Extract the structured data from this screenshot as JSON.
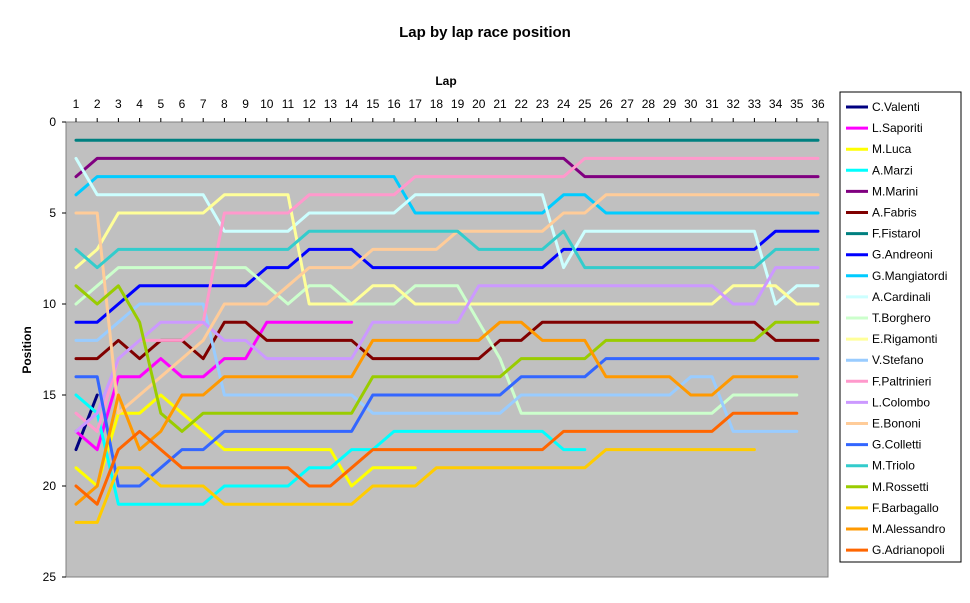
{
  "chart_data": {
    "type": "line",
    "title": "Lap by lap race position",
    "xlabel": "Lap",
    "ylabel": "Position",
    "x_axis_position": "top",
    "y_reversed": true,
    "xlim": [
      1,
      36
    ],
    "ylim": [
      0,
      25
    ],
    "x_ticks": [
      1,
      2,
      3,
      4,
      5,
      6,
      7,
      8,
      9,
      10,
      11,
      12,
      13,
      14,
      15,
      16,
      17,
      18,
      19,
      20,
      21,
      22,
      23,
      24,
      25,
      26,
      27,
      28,
      29,
      30,
      31,
      32,
      33,
      34,
      35,
      36
    ],
    "y_ticks": [
      0,
      5,
      10,
      15,
      20,
      25
    ],
    "grid": false,
    "plot_background": "#c0c0c0",
    "legend_position": "right",
    "series": [
      {
        "name": "C.Valenti",
        "color": "#000080",
        "values": [
          18,
          15
        ]
      },
      {
        "name": "L.Saporiti",
        "color": "#ff00ff",
        "values": [
          17,
          18,
          14,
          14,
          13,
          14,
          14,
          13,
          13,
          11,
          11,
          11,
          11,
          11
        ]
      },
      {
        "name": "M.Luca",
        "color": "#ffff00",
        "values": [
          19,
          20,
          16,
          16,
          15,
          16,
          17,
          18,
          18,
          18,
          18,
          18,
          18,
          20,
          19,
          19,
          19
        ]
      },
      {
        "name": "A.Marzi",
        "color": "#00ffff",
        "values": [
          15,
          16,
          21,
          21,
          21,
          21,
          21,
          20,
          20,
          20,
          20,
          19,
          19,
          18,
          18,
          17,
          17,
          17,
          17,
          17,
          17,
          17,
          17,
          18,
          18
        ]
      },
      {
        "name": "M.Marini",
        "color": "#800080",
        "values": [
          3,
          2,
          2,
          2,
          2,
          2,
          2,
          2,
          2,
          2,
          2,
          2,
          2,
          2,
          2,
          2,
          2,
          2,
          2,
          2,
          2,
          2,
          2,
          2,
          3,
          3,
          3,
          3,
          3,
          3,
          3,
          3,
          3,
          3,
          3,
          3
        ]
      },
      {
        "name": "A.Fabris",
        "color": "#800000",
        "values": [
          13,
          13,
          12,
          13,
          12,
          12,
          13,
          11,
          11,
          12,
          12,
          12,
          12,
          12,
          13,
          13,
          13,
          13,
          13,
          13,
          12,
          12,
          11,
          11,
          11,
          11,
          11,
          11,
          11,
          11,
          11,
          11,
          11,
          12,
          12,
          12
        ]
      },
      {
        "name": "F.Fistarol",
        "color": "#008080",
        "values": [
          1,
          1,
          1,
          1,
          1,
          1,
          1,
          1,
          1,
          1,
          1,
          1,
          1,
          1,
          1,
          1,
          1,
          1,
          1,
          1,
          1,
          1,
          1,
          1,
          1,
          1,
          1,
          1,
          1,
          1,
          1,
          1,
          1,
          1,
          1,
          1
        ]
      },
      {
        "name": "G.Andreoni",
        "color": "#0000ff",
        "values": [
          11,
          11,
          10,
          9,
          9,
          9,
          9,
          9,
          9,
          8,
          8,
          7,
          7,
          7,
          8,
          8,
          8,
          8,
          8,
          8,
          8,
          8,
          8,
          7,
          7,
          7,
          7,
          7,
          7,
          7,
          7,
          7,
          7,
          6,
          6,
          6
        ]
      },
      {
        "name": "G.Mangiatordi",
        "color": "#00ccff",
        "values": [
          4,
          3,
          3,
          3,
          3,
          3,
          3,
          3,
          3,
          3,
          3,
          3,
          3,
          3,
          3,
          3,
          5,
          5,
          5,
          5,
          5,
          5,
          5,
          4,
          4,
          5,
          5,
          5,
          5,
          5,
          5,
          5,
          5,
          5,
          5,
          5
        ]
      },
      {
        "name": "A.Cardinali",
        "color": "#ccffff",
        "values": [
          2,
          4,
          4,
          4,
          4,
          4,
          4,
          6,
          6,
          6,
          6,
          5,
          5,
          5,
          5,
          5,
          4,
          4,
          4,
          4,
          4,
          4,
          4,
          8,
          6,
          6,
          6,
          6,
          6,
          6,
          6,
          6,
          6,
          10,
          9,
          9
        ]
      },
      {
        "name": "T.Borghero",
        "color": "#ccffcc",
        "values": [
          10,
          9,
          8,
          8,
          8,
          8,
          8,
          8,
          8,
          9,
          10,
          9,
          9,
          10,
          10,
          10,
          9,
          9,
          9,
          11,
          13,
          16,
          16,
          16,
          16,
          16,
          16,
          16,
          16,
          16,
          16,
          15,
          15,
          15,
          15
        ]
      },
      {
        "name": "E.Rigamonti",
        "color": "#ffff99",
        "values": [
          8,
          7,
          5,
          5,
          5,
          5,
          5,
          4,
          4,
          4,
          4,
          10,
          10,
          10,
          9,
          9,
          10,
          10,
          10,
          10,
          10,
          10,
          10,
          10,
          10,
          10,
          10,
          10,
          10,
          10,
          10,
          9,
          9,
          9,
          10,
          10
        ]
      },
      {
        "name": "V.Stefano",
        "color": "#99ccff",
        "values": [
          12,
          12,
          11,
          10,
          10,
          10,
          10,
          15,
          15,
          15,
          15,
          15,
          15,
          15,
          16,
          16,
          16,
          16,
          16,
          16,
          16,
          15,
          15,
          15,
          15,
          15,
          15,
          15,
          15,
          14,
          14,
          17,
          17,
          17,
          17
        ]
      },
      {
        "name": "F.Paltrinieri",
        "color": "#ff99cc",
        "values": [
          16,
          17,
          13,
          12,
          12,
          12,
          11,
          5,
          5,
          5,
          5,
          4,
          4,
          4,
          4,
          4,
          3,
          3,
          3,
          3,
          3,
          3,
          3,
          3,
          2,
          2,
          2,
          2,
          2,
          2,
          2,
          2,
          2,
          2,
          2,
          2
        ]
      },
      {
        "name": "L.Colombo",
        "color": "#cc99ff",
        "values": [
          17,
          16,
          13,
          12,
          11,
          11,
          11,
          12,
          12,
          13,
          13,
          13,
          13,
          13,
          11,
          11,
          11,
          11,
          11,
          9,
          9,
          9,
          9,
          9,
          9,
          9,
          9,
          9,
          9,
          9,
          9,
          10,
          10,
          8,
          8,
          8
        ]
      },
      {
        "name": "E.Bononi",
        "color": "#ffcc99",
        "values": [
          5,
          5,
          16,
          15,
          14,
          13,
          12,
          10,
          10,
          10,
          9,
          8,
          8,
          8,
          7,
          7,
          7,
          7,
          6,
          6,
          6,
          6,
          6,
          5,
          5,
          4,
          4,
          4,
          4,
          4,
          4,
          4,
          4,
          4,
          4,
          4
        ]
      },
      {
        "name": "G.Colletti",
        "color": "#3366ff",
        "values": [
          14,
          14,
          20,
          20,
          19,
          18,
          18,
          17,
          17,
          17,
          17,
          17,
          17,
          17,
          15,
          15,
          15,
          15,
          15,
          15,
          15,
          14,
          14,
          14,
          14,
          13,
          13,
          13,
          13,
          13,
          13,
          13,
          13,
          13,
          13,
          13
        ]
      },
      {
        "name": "M.Triolo",
        "color": "#33cccc",
        "values": [
          7,
          8,
          7,
          7,
          7,
          7,
          7,
          7,
          7,
          7,
          7,
          6,
          6,
          6,
          6,
          6,
          6,
          6,
          6,
          7,
          7,
          7,
          7,
          6,
          8,
          8,
          8,
          8,
          8,
          8,
          8,
          8,
          8,
          7,
          7,
          7
        ]
      },
      {
        "name": "M.Rossetti",
        "color": "#99cc00",
        "values": [
          9,
          10,
          9,
          11,
          16,
          17,
          16,
          16,
          16,
          16,
          16,
          16,
          16,
          16,
          14,
          14,
          14,
          14,
          14,
          14,
          14,
          13,
          13,
          13,
          13,
          12,
          12,
          12,
          12,
          12,
          12,
          12,
          12,
          11,
          11,
          11
        ]
      },
      {
        "name": "F.Barbagallo",
        "color": "#ffcc00",
        "values": [
          22,
          22,
          19,
          19,
          20,
          20,
          20,
          21,
          21,
          21,
          21,
          21,
          21,
          21,
          20,
          20,
          20,
          19,
          19,
          19,
          19,
          19,
          19,
          19,
          19,
          18,
          18,
          18,
          18,
          18,
          18,
          18,
          18
        ]
      },
      {
        "name": "M.Alessandro",
        "color": "#ff9900",
        "values": [
          21,
          20,
          15,
          18,
          17,
          15,
          15,
          14,
          14,
          14,
          14,
          14,
          14,
          14,
          12,
          12,
          12,
          12,
          12,
          12,
          11,
          11,
          12,
          12,
          12,
          14,
          14,
          14,
          14,
          15,
          15,
          14,
          14,
          14,
          14
        ]
      },
      {
        "name": "G.Adrianopoli",
        "color": "#ff6600",
        "values": [
          20,
          21,
          18,
          17,
          18,
          19,
          19,
          19,
          19,
          19,
          19,
          20,
          20,
          19,
          18,
          18,
          18,
          18,
          18,
          18,
          18,
          18,
          18,
          17,
          17,
          17,
          17,
          17,
          17,
          17,
          17,
          16,
          16,
          16,
          16
        ]
      }
    ]
  }
}
